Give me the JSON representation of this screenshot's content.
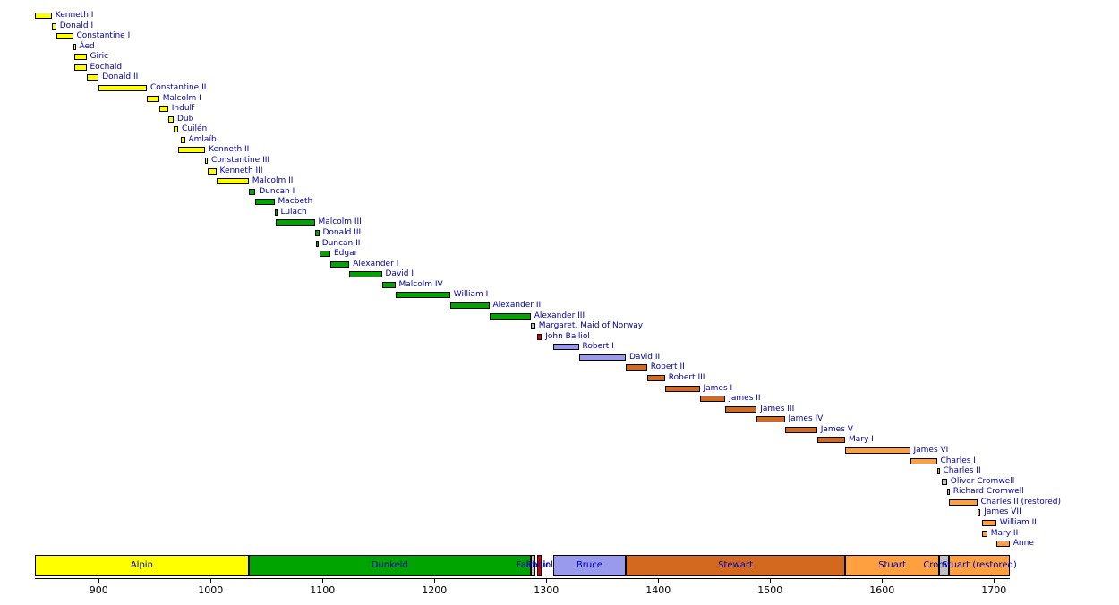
{
  "chart_data": {
    "type": "timeline",
    "title": "",
    "x_axis": {
      "min": 843,
      "max": 1714,
      "ticks": [
        900,
        1000,
        1100,
        1200,
        1300,
        1400,
        1500,
        1600,
        1700
      ]
    },
    "label_color": "#0000aa",
    "house_colors": {
      "Alpin": "#ffff00",
      "Dunkeld": "#00a400",
      "Fairhair": "#c0c0c0",
      "Balliol": "#d40000",
      "Bruce": "#9999ee",
      "Stewart": "#d2691e",
      "Stuart": "#ffa040",
      "Cromwell": "#c0c0c0"
    },
    "monarchs": [
      {
        "name": "Kenneth I",
        "start": 843,
        "end": 858,
        "house": "Alpin"
      },
      {
        "name": "Donald I",
        "start": 858,
        "end": 862,
        "house": "Alpin"
      },
      {
        "name": "Constantine I",
        "start": 862,
        "end": 877,
        "house": "Alpin"
      },
      {
        "name": "Áed",
        "start": 877,
        "end": 878,
        "house": "Alpin"
      },
      {
        "name": "Giric",
        "start": 878,
        "end": 889,
        "house": "Alpin"
      },
      {
        "name": "Eochaid",
        "start": 878,
        "end": 889,
        "house": "Alpin"
      },
      {
        "name": "Donald II",
        "start": 889,
        "end": 900,
        "house": "Alpin"
      },
      {
        "name": "Constantine II",
        "start": 900,
        "end": 943,
        "house": "Alpin"
      },
      {
        "name": "Malcolm I",
        "start": 943,
        "end": 954,
        "house": "Alpin"
      },
      {
        "name": "Indulf",
        "start": 954,
        "end": 962,
        "house": "Alpin"
      },
      {
        "name": "Dub",
        "start": 962,
        "end": 967,
        "house": "Alpin"
      },
      {
        "name": "Cuilén",
        "start": 967,
        "end": 971,
        "house": "Alpin"
      },
      {
        "name": "Amlaíb",
        "start": 973,
        "end": 977,
        "house": "Alpin"
      },
      {
        "name": "Kenneth II",
        "start": 971,
        "end": 995,
        "house": "Alpin"
      },
      {
        "name": "Constantine III",
        "start": 995,
        "end": 997,
        "house": "Alpin"
      },
      {
        "name": "Kenneth III",
        "start": 997,
        "end": 1005,
        "house": "Alpin"
      },
      {
        "name": "Malcolm II",
        "start": 1005,
        "end": 1034,
        "house": "Alpin"
      },
      {
        "name": "Duncan I",
        "start": 1034,
        "end": 1040,
        "house": "Dunkeld"
      },
      {
        "name": "Macbeth",
        "start": 1040,
        "end": 1057,
        "house": "Dunkeld"
      },
      {
        "name": "Lulach",
        "start": 1057,
        "end": 1058,
        "house": "Dunkeld"
      },
      {
        "name": "Malcolm III",
        "start": 1058,
        "end": 1093,
        "house": "Dunkeld"
      },
      {
        "name": "Donald III",
        "start": 1093,
        "end": 1097,
        "house": "Dunkeld"
      },
      {
        "name": "Duncan II",
        "start": 1094,
        "end": 1094,
        "house": "Dunkeld"
      },
      {
        "name": "Edgar",
        "start": 1097,
        "end": 1107,
        "house": "Dunkeld"
      },
      {
        "name": "Alexander I",
        "start": 1107,
        "end": 1124,
        "house": "Dunkeld"
      },
      {
        "name": "David I",
        "start": 1124,
        "end": 1153,
        "house": "Dunkeld"
      },
      {
        "name": "Malcolm IV",
        "start": 1153,
        "end": 1165,
        "house": "Dunkeld"
      },
      {
        "name": "William I",
        "start": 1165,
        "end": 1214,
        "house": "Dunkeld"
      },
      {
        "name": "Alexander II",
        "start": 1214,
        "end": 1249,
        "house": "Dunkeld"
      },
      {
        "name": "Alexander III",
        "start": 1249,
        "end": 1286,
        "house": "Dunkeld"
      },
      {
        "name": "Margaret, Maid of Norway",
        "start": 1286,
        "end": 1290,
        "house": "Fairhair"
      },
      {
        "name": "John Balliol",
        "start": 1292,
        "end": 1296,
        "house": "Balliol"
      },
      {
        "name": "Robert I",
        "start": 1306,
        "end": 1329,
        "house": "Bruce"
      },
      {
        "name": "David II",
        "start": 1329,
        "end": 1371,
        "house": "Bruce"
      },
      {
        "name": "Robert II",
        "start": 1371,
        "end": 1390,
        "house": "Stewart"
      },
      {
        "name": "Robert III",
        "start": 1390,
        "end": 1406,
        "house": "Stewart"
      },
      {
        "name": "James I",
        "start": 1406,
        "end": 1437,
        "house": "Stewart"
      },
      {
        "name": "James II",
        "start": 1437,
        "end": 1460,
        "house": "Stewart"
      },
      {
        "name": "James III",
        "start": 1460,
        "end": 1488,
        "house": "Stewart"
      },
      {
        "name": "James IV",
        "start": 1488,
        "end": 1513,
        "house": "Stewart"
      },
      {
        "name": "James V",
        "start": 1513,
        "end": 1542,
        "house": "Stewart"
      },
      {
        "name": "Mary I",
        "start": 1542,
        "end": 1567,
        "house": "Stewart"
      },
      {
        "name": "James VI",
        "start": 1567,
        "end": 1625,
        "house": "Stuart"
      },
      {
        "name": "Charles I",
        "start": 1625,
        "end": 1649,
        "house": "Stuart"
      },
      {
        "name": "Charles II",
        "start": 1649,
        "end": 1651,
        "house": "Stuart"
      },
      {
        "name": "Oliver Cromwell",
        "start": 1653,
        "end": 1658,
        "house": "Cromwell"
      },
      {
        "name": "Richard Cromwell",
        "start": 1658,
        "end": 1659,
        "house": "Cromwell"
      },
      {
        "name": "Charles II (restored)",
        "start": 1660,
        "end": 1685,
        "house": "Stuart"
      },
      {
        "name": "James VII",
        "start": 1685,
        "end": 1688,
        "house": "Stuart"
      },
      {
        "name": "William II",
        "start": 1689,
        "end": 1702,
        "house": "Stuart"
      },
      {
        "name": "Mary II",
        "start": 1689,
        "end": 1694,
        "house": "Stuart"
      },
      {
        "name": "Anne",
        "start": 1702,
        "end": 1714,
        "house": "Stuart"
      }
    ],
    "house_bands": [
      {
        "label": "Alpin",
        "start": 843,
        "end": 1034,
        "house": "Alpin"
      },
      {
        "label": "Dunkeld",
        "start": 1034,
        "end": 1286,
        "house": "Dunkeld"
      },
      {
        "label": "Fairhair",
        "start": 1286,
        "end": 1290,
        "house": "Fairhair"
      },
      {
        "label": "Balliol",
        "start": 1292,
        "end": 1296,
        "house": "Balliol"
      },
      {
        "label": "Bruce",
        "start": 1306,
        "end": 1371,
        "house": "Bruce"
      },
      {
        "label": "Stewart",
        "start": 1371,
        "end": 1567,
        "house": "Stewart"
      },
      {
        "label": "Stuart",
        "start": 1567,
        "end": 1651,
        "house": "Stuart"
      },
      {
        "label": "Cromwell",
        "start": 1651,
        "end": 1660,
        "house": "Cromwell"
      },
      {
        "label": "Stuart (restored)",
        "start": 1660,
        "end": 1714,
        "house": "Stuart"
      }
    ]
  }
}
